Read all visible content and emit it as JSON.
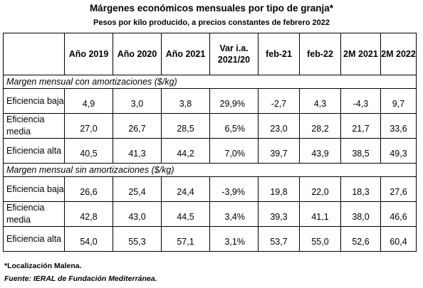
{
  "title": "Márgenes económicos mensuales por tipo de granja*",
  "subtitle": "Pesos por kilo producido, a precios constantes de febrero 2022",
  "table": {
    "headers": [
      "",
      "Año 2019",
      "Año 2020",
      "Año 2021",
      "Var i.a. 2021/20",
      "feb-21",
      "feb-22",
      "2M 2021",
      "2M 2022"
    ],
    "sections": [
      {
        "label": "Margen mensual con amortizaciones ($/kg)",
        "rows": [
          {
            "label": "Eficiencia baja",
            "values": [
              "4,9",
              "3,0",
              "3,8",
              "29,9%",
              "-2,7",
              "4,3",
              "-4,3",
              "9,7"
            ]
          },
          {
            "label": "Eficiencia media",
            "values": [
              "27,0",
              "26,7",
              "28,5",
              "6,5%",
              "23,0",
              "28,2",
              "21,7",
              "33,6"
            ]
          },
          {
            "label": "Eficiencia alta",
            "values": [
              "40,5",
              "41,3",
              "44,2",
              "7,0%",
              "39,7",
              "43,9",
              "38,5",
              "49,3"
            ]
          }
        ]
      },
      {
        "label": "Margen mensual sin amortizaciones ($/kg)",
        "rows": [
          {
            "label": "Eficiencia baja",
            "values": [
              "26,6",
              "25,4",
              "24,4",
              "-3,9%",
              "19,8",
              "22,0",
              "18,3",
              "27,6"
            ]
          },
          {
            "label": "Eficiencia media",
            "values": [
              "42,8",
              "43,0",
              "44,5",
              "3,4%",
              "39,3",
              "41,1",
              "38,0",
              "46,6"
            ]
          },
          {
            "label": "Eficiencia alta",
            "values": [
              "54,0",
              "55,3",
              "57,1",
              "3,1%",
              "53,7",
              "55,0",
              "52,6",
              "60,4"
            ]
          }
        ]
      }
    ]
  },
  "footnote": "*Localización Malena.",
  "source": "Fuente: IERAL de Fundación Mediterránea."
}
